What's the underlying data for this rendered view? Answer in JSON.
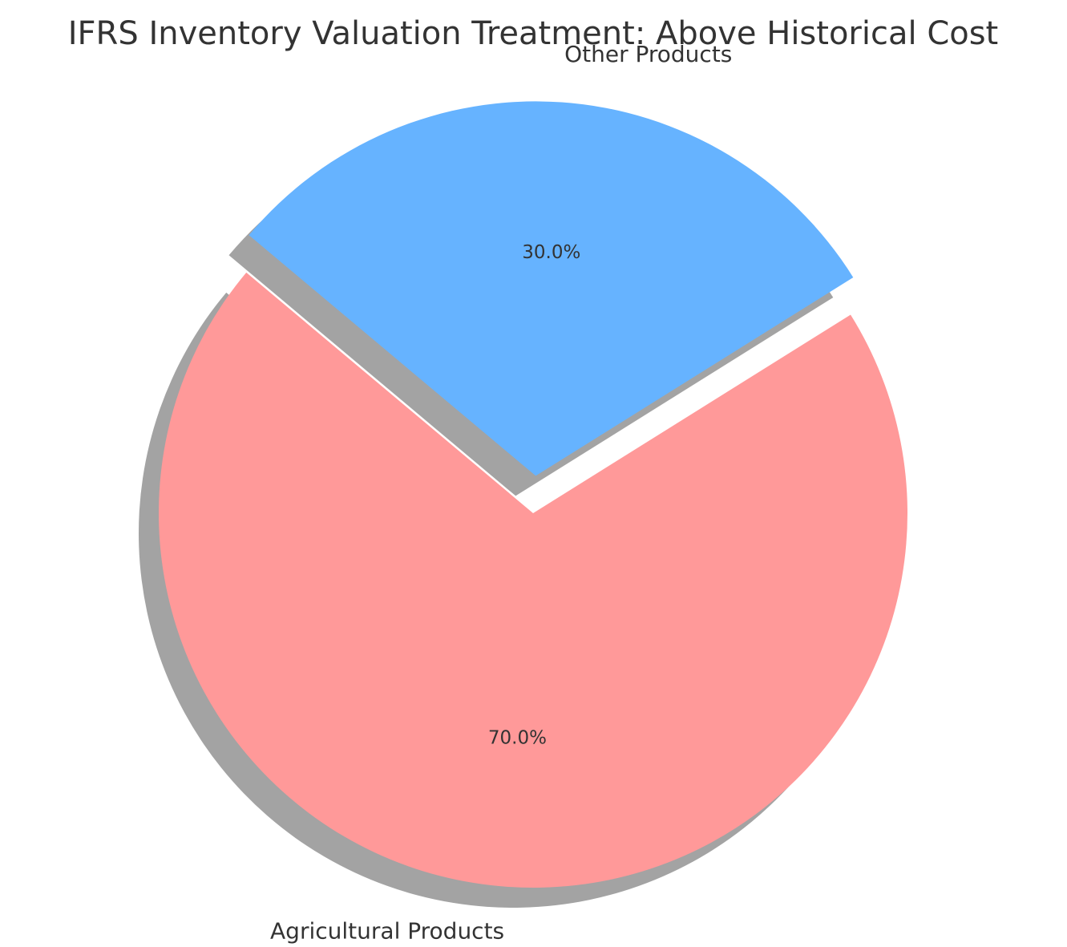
{
  "chart_data": {
    "type": "pie",
    "title": "IFRS Inventory Valuation Treatment: Above Historical Cost",
    "categories": [
      "Agricultural Products",
      "Other Products"
    ],
    "values": [
      70,
      30
    ],
    "percent_labels": [
      "70.0%",
      "30.0%"
    ],
    "colors": [
      "#ff9999",
      "#66b3ff"
    ],
    "explode": [
      0,
      0.1
    ],
    "start_angle_deg": 140,
    "shadow": true,
    "legend": "none"
  }
}
